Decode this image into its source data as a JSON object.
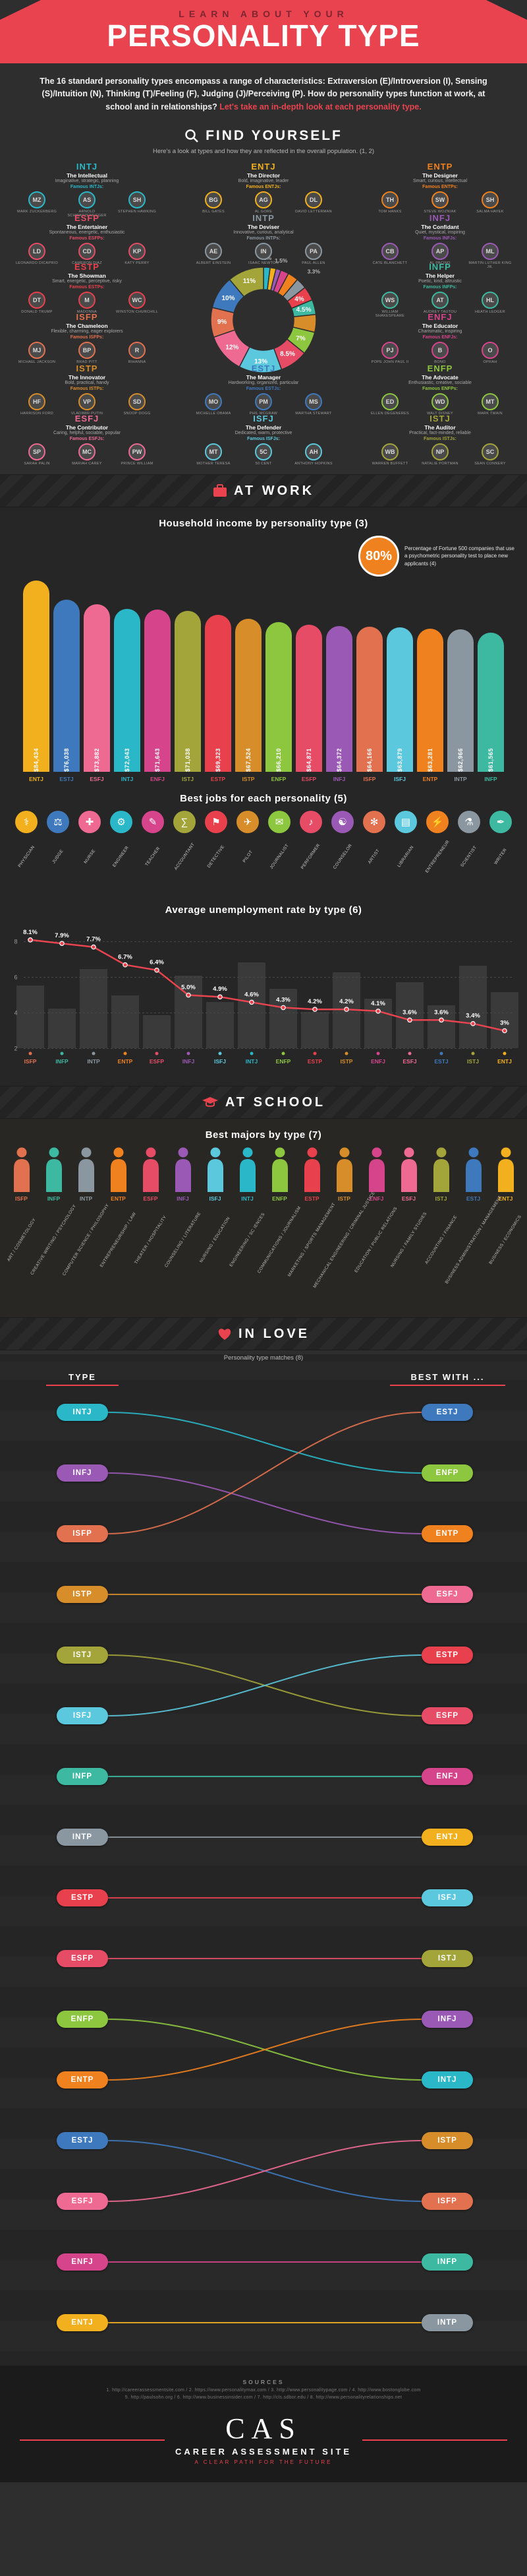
{
  "palette": {
    "INTJ": "#2ab8c9",
    "ENTJ": "#f2b01e",
    "ENTP": "#f0811f",
    "INTP": "#8b97a0",
    "INFJ": "#9b59b6",
    "ENFJ": "#d6458c",
    "INFP": "#3cb9a0",
    "ENFP": "#8dc63f",
    "ISTJ": "#a3a53a",
    "ESTJ": "#3e79bd",
    "ISTP": "#d78d29",
    "ESTP": "#e8414d",
    "ISFJ": "#5bc8dd",
    "ESFJ": "#ef6a93",
    "ISFP": "#e2714f",
    "ESFP": "#e64c66"
  },
  "accent": "#e8434e",
  "header": {
    "kicker": "LEARN ABOUT YOUR",
    "title": "PERSONALITY TYPE"
  },
  "intro": {
    "main": "The 16 standard personality types encompass a range of characteristics: Extraversion (E)/Introversion (I), Sensing (S)/Intuition (N), Thinking (T)/Feeling (F), Judging (J)/Perceiving (P). How do personality types function at work, at school and in relationships? ",
    "accent": "Let's take an in-depth look at each personality type."
  },
  "find_yourself": {
    "title": "FIND YOURSELF",
    "subtitle": "Here's a look at types and how they are reflected in the overall population. (1, 2)",
    "cards": [
      {
        "type": "INTJ",
        "name": "The Intellectual",
        "traits": "Imaginative, strategic, planning",
        "famous_label": "Famous INTJs:",
        "people": [
          "MARK ZUCKERBERG",
          "ARNOLD SCHWARZENEGGER",
          "STEPHEN HAWKING"
        ]
      },
      {
        "type": "ENTJ",
        "name": "The Director",
        "traits": "Bold, imaginative, leader",
        "famous_label": "Famous ENTJs:",
        "people": [
          "BILL GATES",
          "AL GORE",
          "DAVID LETTERMAN"
        ]
      },
      {
        "type": "ENTP",
        "name": "The Designer",
        "traits": "Smart, curious, intellectual",
        "famous_label": "Famous ENTPs:",
        "people": [
          "TOM HANKS",
          "STEVE WOZNIAK",
          "SALMA HAYEK"
        ]
      },
      {
        "type": "ESFP",
        "name": "The Entertainer",
        "traits": "Spontaneous, energetic, enthusiastic",
        "famous_label": "Famous ESFPs:",
        "people": [
          "LEONARDO DICAPRIO",
          "CAMERON DIAZ",
          "KATY PERRY"
        ]
      },
      {
        "type": "INTP",
        "name": "The Deviser",
        "traits": "Innovative, curious, analytical",
        "famous_label": "Famous INTPs:",
        "people": [
          "ALBERT EINSTEIN",
          "ISAAC NEWTON",
          "PAUL ALLEN"
        ]
      },
      {
        "type": "INFJ",
        "name": "The Confidant",
        "traits": "Quiet, mystical, inspiring",
        "famous_label": "Famous INFJs:",
        "people": [
          "CATE BLANCHETT",
          "AL PACINO",
          "MARTIN LUTHER KING JR."
        ]
      },
      {
        "type": "ESTP",
        "name": "The Showman",
        "traits": "Smart, energetic, perceptive, risky",
        "famous_label": "Famous ESTPs:",
        "people": [
          "DONALD TRUMP",
          "MADONNA",
          "WINSTON CHURCHILL"
        ]
      },
      {
        "type": "INFP",
        "name": "The Helper",
        "traits": "Poetic, kind, altruistic",
        "famous_label": "Famous INFPs:",
        "people": [
          "WILLIAM SHAKESPEARE",
          "AUDREY TAUTOU",
          "HEATH LEDGER"
        ]
      },
      {
        "type": "ISFP",
        "name": "The Chameleon",
        "traits": "Flexible, charming, eager explorers",
        "famous_label": "Famous ISFPs:",
        "people": [
          "MICHAEL JACKSON",
          "BRAD PITT",
          "RIHANNA"
        ]
      },
      {
        "type": "ENFJ",
        "name": "The Educator",
        "traits": "Charismatic, inspiring",
        "famous_label": "Famous ENFJs:",
        "people": [
          "POPE JOHN PAUL II",
          "BONO",
          "OPRAH"
        ]
      },
      {
        "type": "ISTP",
        "name": "The Innovator",
        "traits": "Bold, practical, handy",
        "famous_label": "Famous ISTPs:",
        "people": [
          "HARRISON FORD",
          "VLADIMIR PUTIN",
          "SNOOP DOGG"
        ]
      },
      {
        "type": "ESTJ",
        "name": "The Manager",
        "traits": "Hardworking, organized, particular",
        "famous_label": "Famous ESTJs:",
        "people": [
          "MICHELLE OBAMA",
          "PHIL MCGRAW",
          "MARTHA STEWART"
        ]
      },
      {
        "type": "ENFP",
        "name": "The Advocate",
        "traits": "Enthusiastic, creative, sociable",
        "famous_label": "Famous ENFPs:",
        "people": [
          "ELLEN DEGENERES",
          "WALT DISNEY",
          "MARK TWAIN"
        ]
      },
      {
        "type": "ESFJ",
        "name": "The Contributor",
        "traits": "Caring, helpful, sociable, popular",
        "famous_label": "Famous ESFJs:",
        "people": [
          "SARAH PALIN",
          "MARIAH CAREY",
          "PRINCE WILLIAM"
        ]
      },
      {
        "type": "ISFJ",
        "name": "The Defender",
        "traits": "Dedicated, warm, protective",
        "famous_label": "Famous ISFJs:",
        "people": [
          "MOTHER TERESA",
          "50 CENT",
          "ANTHONY HOPKINS"
        ]
      },
      {
        "type": "ISTJ",
        "name": "The Auditor",
        "traits": "Practical, fact-minded, reliable",
        "famous_label": "Famous ISTJs:",
        "people": [
          "WARREN BUFFETT",
          "NATALIE PORTMAN",
          "SEAN CONNERY"
        ]
      }
    ]
  },
  "at_work": {
    "title": "AT WORK",
    "fortune": {
      "pct": "80%",
      "text": "Percentage of Fortune 500 companies that use a psychometric personality test to place new applicants (4)"
    },
    "jobs": {
      "title": "Best jobs for each personality (5)",
      "items": [
        {
          "type": "ENTJ",
          "job": "PHYSICIAN",
          "icon": "⚕",
          "icon_name": "medical-icon"
        },
        {
          "type": "ESTJ",
          "job": "JUDGE",
          "icon": "⚖",
          "icon_name": "scales-icon"
        },
        {
          "type": "ESFJ",
          "job": "NURSE",
          "icon": "✚",
          "icon_name": "cross-icon"
        },
        {
          "type": "INTJ",
          "job": "ENGINEER",
          "icon": "⚙",
          "icon_name": "gear-icon"
        },
        {
          "type": "ENFJ",
          "job": "TEACHER",
          "icon": "✎",
          "icon_name": "pencil-icon"
        },
        {
          "type": "ISTJ",
          "job": "ACCOUNTANT",
          "icon": "∑",
          "icon_name": "sigma-icon"
        },
        {
          "type": "ESTP",
          "job": "DETECTIVE",
          "icon": "⚑",
          "icon_name": "flag-icon"
        },
        {
          "type": "ISTP",
          "job": "PILOT",
          "icon": "✈",
          "icon_name": "plane-icon"
        },
        {
          "type": "ENFP",
          "job": "JOURNALIST",
          "icon": "✉",
          "icon_name": "envelope-icon"
        },
        {
          "type": "ESFP",
          "job": "PERFORMER",
          "icon": "♪",
          "icon_name": "music-note-icon"
        },
        {
          "type": "INFJ",
          "job": "COUNSELOR",
          "icon": "☯",
          "icon_name": "yin-yang-icon"
        },
        {
          "type": "ISFP",
          "job": "ARTIST",
          "icon": "✻",
          "icon_name": "flower-icon"
        },
        {
          "type": "ISFJ",
          "job": "LIBRARIAN",
          "icon": "▤",
          "icon_name": "book-icon"
        },
        {
          "type": "ENTP",
          "job": "ENTREPRENEUR",
          "icon": "⚡",
          "icon_name": "bolt-icon"
        },
        {
          "type": "INTP",
          "job": "SCIENTIST",
          "icon": "⚗",
          "icon_name": "flask-icon"
        },
        {
          "type": "INFP",
          "job": "WRITER",
          "icon": "✒",
          "icon_name": "pen-nib-icon"
        }
      ]
    }
  },
  "at_school": {
    "title": "AT SCHOOL",
    "majors_title": "Best majors by type (7)",
    "majors": [
      {
        "type": "ISFP",
        "major": "ART / COSMETOLOGY"
      },
      {
        "type": "INFP",
        "major": "CREATIVE WRITING / PSYCHOLOGY"
      },
      {
        "type": "INTP",
        "major": "COMPUTER SCIENCE / PHILOSOPHY"
      },
      {
        "type": "ENTP",
        "major": "ENTREPRENEURSHIP / LAW"
      },
      {
        "type": "ESFP",
        "major": "THEATER / HOSPITALITY"
      },
      {
        "type": "INFJ",
        "major": "COUNSELING / LITERATURE"
      },
      {
        "type": "ISFJ",
        "major": "NURSING / EDUCATION"
      },
      {
        "type": "INTJ",
        "major": "ENGINEERING / SC IENCES"
      },
      {
        "type": "ENFP",
        "major": "COMMUNICATIONS / JOURNALISM"
      },
      {
        "type": "ESTP",
        "major": "MARKETING / SPORTS MANAGEMENT"
      },
      {
        "type": "ISTP",
        "major": "MECHANICAL ENGINEERING / CRIMINAL JUSTICE"
      },
      {
        "type": "ENFJ",
        "major": "EDUCATION / PUBLIC RELATIONS"
      },
      {
        "type": "ESFJ",
        "major": "NURSING / FAMILY STUDIES"
      },
      {
        "type": "ISTJ",
        "major": "ACCOUNTING / FINANCE"
      },
      {
        "type": "ESTJ",
        "major": "BUSINESS ADMINISTRATION / MANAGEMENT"
      },
      {
        "type": "ENTJ",
        "major": "BUSINESS / ECONOMICS"
      }
    ]
  },
  "in_love": {
    "title": "IN LOVE",
    "subtitle": "Personality type matches (8)",
    "col_left": "TYPE",
    "col_right": "BEST WITH ...",
    "left": [
      "INTJ",
      "INFJ",
      "ISFP",
      "ISTP",
      "ISTJ",
      "ISFJ",
      "INFP",
      "INTP",
      "ESTP",
      "ESFP",
      "ENFP",
      "ENTP",
      "ESTJ",
      "ESFJ",
      "ENFJ",
      "ENTJ"
    ],
    "right": [
      "ESTJ",
      "ENFP",
      "ENTP",
      "ESFJ",
      "ESTP",
      "ESFP",
      "ENFJ",
      "ENTJ",
      "ISFJ",
      "ISTJ",
      "INFJ",
      "INTJ",
      "ISTP",
      "ISFP",
      "INFP",
      "INTP"
    ],
    "match": [
      "ENFP",
      "ENTP",
      "ESTJ",
      "ESFJ",
      "ESFP",
      "ESTP",
      "ENFJ",
      "ENTJ",
      "ISFJ",
      "ISTJ",
      "INTJ",
      "INFJ",
      "ISFP",
      "ISTP",
      "INFP",
      "INTP"
    ]
  },
  "footer": {
    "sources_title": "SOURCES",
    "lines": [
      "1. http://careerassessmentsite.com / 2. https://www.personalitymax.com / 3. http://www.personalitypage.com / 4. http://www.bostonglobe.com",
      "5. http://paulsohn.org / 6. http://www.businessinsider.com / 7. http://cls.sdbor.edu / 8. http://www.personalityrelationships.net"
    ],
    "logo": "CAS",
    "brand": "CAREER ASSESSMENT SITE",
    "tagline": "A CLEAR PATH FOR THE FUTURE"
  },
  "chart_data": [
    {
      "type": "pie",
      "title": "Population distribution of the 16 personality types",
      "labels": [
        "INTJ",
        "ENTJ",
        "INFJ",
        "ENFJ",
        "ENTP",
        "INTP",
        "ESTP",
        "INFP",
        "ISTP",
        "ENFP",
        "ESFP",
        "ISFJ",
        "ESFJ",
        "ISFP",
        "ESTJ",
        "ISTJ"
      ],
      "values": [
        2,
        1.8,
        1.5,
        2.5,
        3.2,
        3.3,
        4.3,
        4.5,
        5.4,
        7,
        8.5,
        13,
        12,
        9,
        10,
        11
      ],
      "display_labels": [
        "2%",
        "",
        "1.5%",
        "",
        "",
        "3.3%",
        "4%",
        "4.5%",
        "",
        "7%",
        "8.5%",
        "13%",
        "12%",
        "9%",
        "10%",
        "11%"
      ],
      "hole": true,
      "legend": "none"
    },
    {
      "type": "bar",
      "title": "Household income by personality type (3)",
      "categories": [
        "ENTJ",
        "ESTJ",
        "ESFJ",
        "INTJ",
        "ENFJ",
        "ISTJ",
        "ESTP",
        "ISTP",
        "ENFP",
        "ESFP",
        "INFJ",
        "ISFP",
        "ISFJ",
        "ENTP",
        "INTP",
        "INFP"
      ],
      "values": [
        84434,
        76038,
        73882,
        72043,
        71643,
        71038,
        69323,
        67524,
        66210,
        64871,
        64372,
        64166,
        63879,
        63281,
        62966,
        61565
      ],
      "value_labels": [
        "$84,434",
        "$76,038",
        "$73,882",
        "$72,043",
        "$71,643",
        "$71,038",
        "$69,323",
        "$67,524",
        "$66,210",
        "$64,871",
        "$64,372",
        "$64,166",
        "$63,879",
        "$63,281",
        "$62,966",
        "$61,565"
      ],
      "xlabel": "",
      "ylabel": "Household income (USD)",
      "ylim": [
        0,
        90000
      ],
      "grid": false
    },
    {
      "type": "line",
      "title": "Average unemployment rate by type (6)",
      "categories": [
        "ISFP",
        "INFP",
        "INTP",
        "ENTP",
        "ESFP",
        "INFJ",
        "ISFJ",
        "INTJ",
        "ENFP",
        "ESTP",
        "ISTP",
        "ENFJ",
        "ESFJ",
        "ESTJ",
        "ISTJ",
        "ENTJ"
      ],
      "values": [
        8.1,
        7.9,
        7.7,
        6.7,
        6.4,
        5.0,
        4.9,
        4.6,
        4.3,
        4.2,
        4.2,
        4.1,
        3.6,
        3.6,
        3.4,
        3.0
      ],
      "value_labels": [
        "8.1%",
        "7.9%",
        "7.7%",
        "6.7%",
        "6.4%",
        "5.0%",
        "4.9%",
        "4.6%",
        "4.3%",
        "4.2%",
        "4.2%",
        "4.1%",
        "3.6%",
        "3.6%",
        "3.4%",
        "3%"
      ],
      "yticks": [
        8,
        6,
        4,
        2
      ],
      "ylim": [
        2,
        8.5
      ],
      "xlabel": "",
      "ylabel": "Unemployment rate (%)",
      "grid": true,
      "line_color": "#e8444f"
    }
  ]
}
